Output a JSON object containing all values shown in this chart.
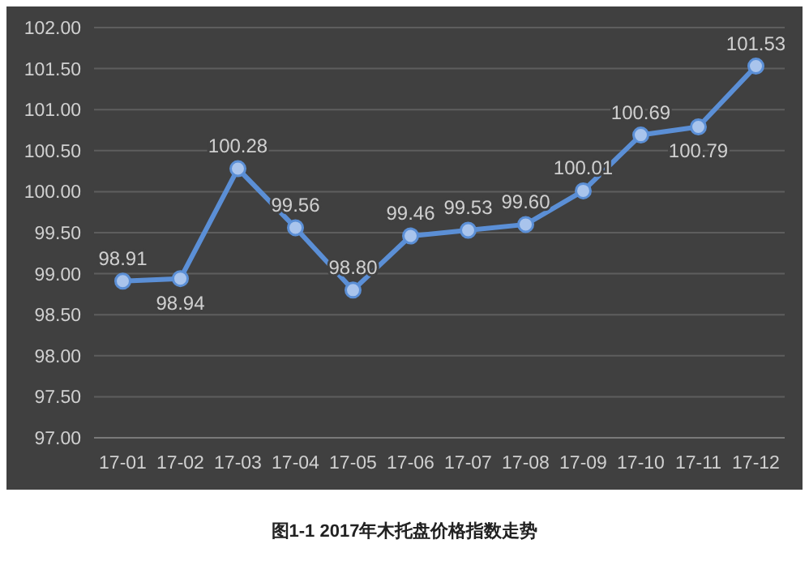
{
  "chart_data": {
    "type": "line",
    "categories": [
      "17-01",
      "17-02",
      "17-03",
      "17-04",
      "17-05",
      "17-06",
      "17-07",
      "17-08",
      "17-09",
      "17-10",
      "17-11",
      "17-12"
    ],
    "series": [
      {
        "color": "#5b8fd6",
        "values": [
          98.91,
          98.94,
          100.28,
          99.56,
          98.8,
          99.46,
          99.53,
          99.6,
          100.01,
          100.69,
          100.79,
          101.53
        ],
        "value_labels": [
          "98.91",
          "98.94",
          "100.28",
          "99.56",
          "98.80",
          "99.46",
          "99.53",
          "99.60",
          "100.01",
          "100.69",
          "100.79",
          "101.53"
        ]
      }
    ],
    "ylim": [
      97,
      102
    ],
    "yticks": [
      {
        "value": 97,
        "label": "97.00"
      },
      {
        "value": 97.5,
        "label": "97.50"
      },
      {
        "value": 98,
        "label": "98.00"
      },
      {
        "value": 98.5,
        "label": "98.50"
      },
      {
        "value": 99,
        "label": "99.00"
      },
      {
        "value": 99.5,
        "label": "99.50"
      },
      {
        "value": 100,
        "label": "100.00"
      },
      {
        "value": 100.5,
        "label": "100.50"
      },
      {
        "value": 101,
        "label": "101.00"
      },
      {
        "value": 101.5,
        "label": "101.50"
      },
      {
        "value": 102,
        "label": "102.00"
      }
    ],
    "grid": "y",
    "marker": "circle",
    "line_style": "solid",
    "annotations": [
      "图1-1 2017年木托盘价格指数走势"
    ]
  }
}
